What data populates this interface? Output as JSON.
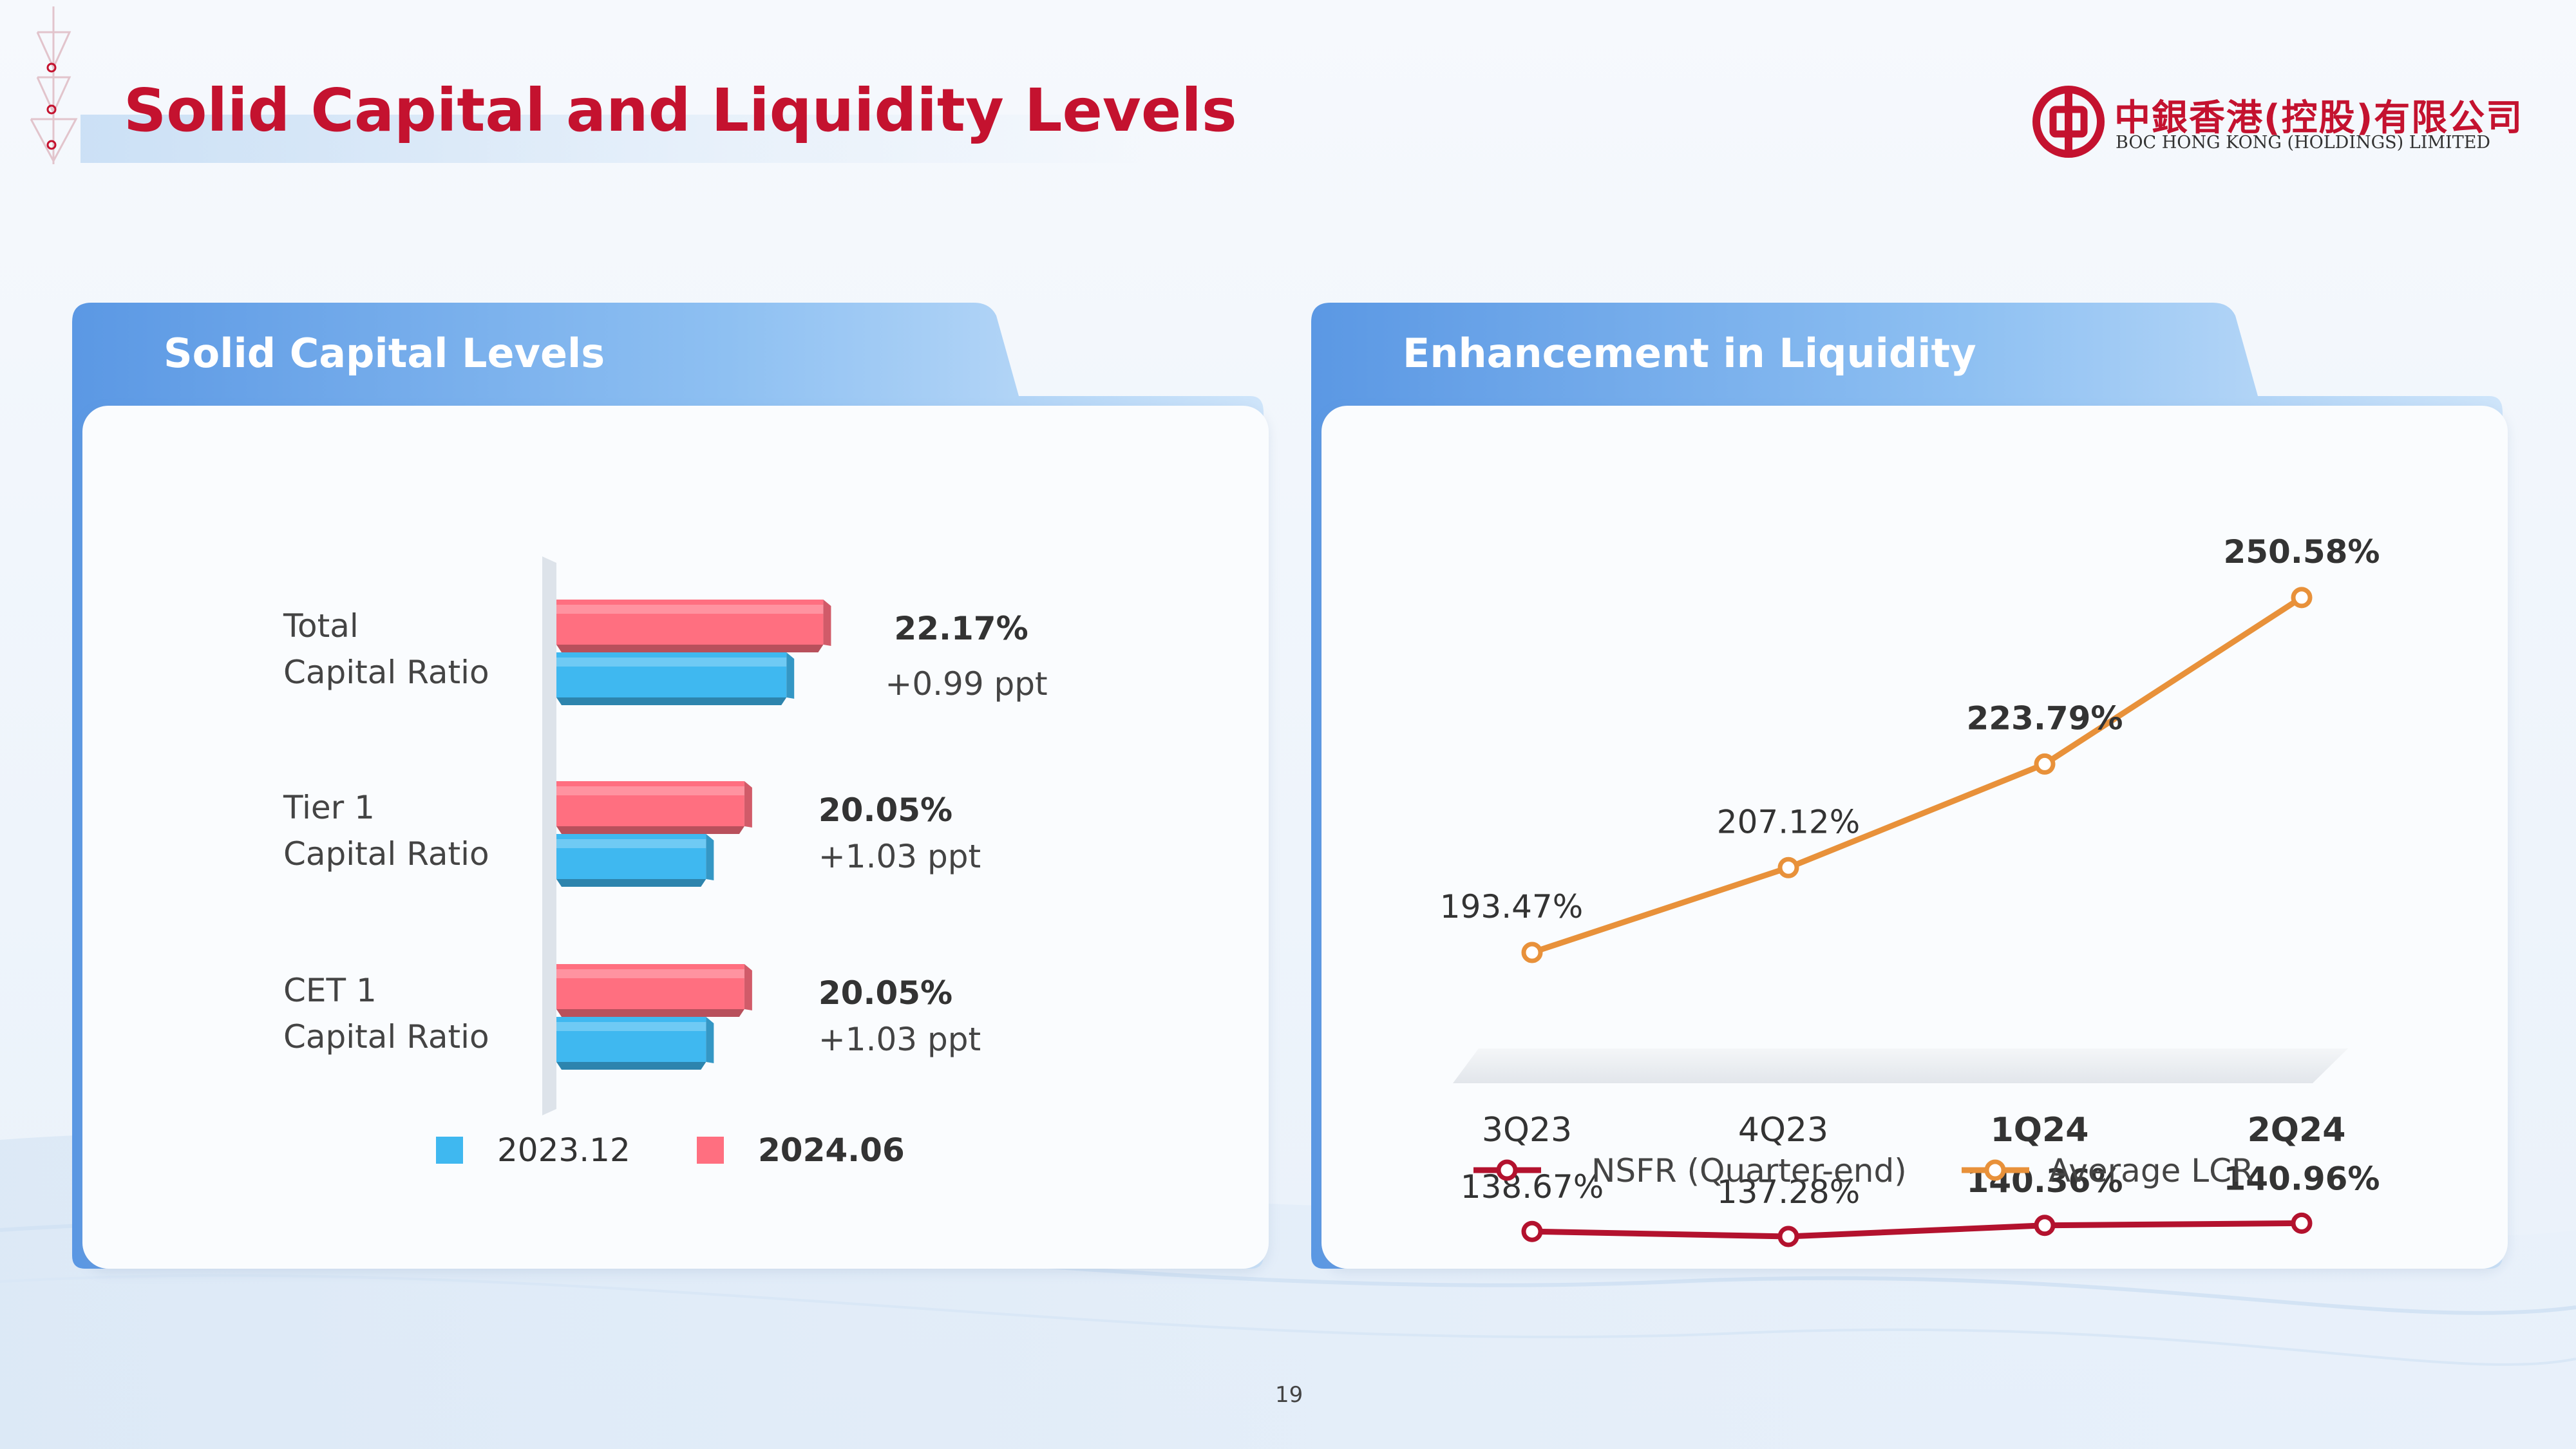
{
  "header": {
    "title": "Solid Capital and Liquidity Levels",
    "logo_cn": "中銀香港(控股)有限公司",
    "logo_en": "BOC HONG KONG (HOLDINGS) LIMITED"
  },
  "colors": {
    "accent_red": "#c4122f",
    "bar_2023": "#3fb8f0",
    "bar_2024": "#ff6f80",
    "nsfr_line": "#b3122e",
    "lcr_line": "#e8913a"
  },
  "panels": {
    "left_title": "Solid Capital Levels",
    "right_title": "Enhancement in Liquidity"
  },
  "page_number": "19",
  "chart_data": [
    {
      "type": "bar",
      "orientation": "horizontal",
      "categories": [
        {
          "line1": "Total",
          "line2": "Capital Ratio"
        },
        {
          "line1": "Tier 1",
          "line2": "Capital Ratio"
        },
        {
          "line1": "CET 1",
          "line2": "Capital Ratio"
        }
      ],
      "series": [
        {
          "name": "2023.12",
          "values": [
            21.18,
            19.02,
            19.02
          ]
        },
        {
          "name": "2024.06",
          "values": [
            22.17,
            20.05,
            20.05
          ]
        }
      ],
      "value_labels": [
        "22.17%",
        "20.05%",
        "20.05%"
      ],
      "change_labels": [
        "+0.99 ppt",
        "+1.03 ppt",
        "+1.03 ppt"
      ],
      "xlim": [
        15,
        24
      ],
      "legend_position": "bottom"
    },
    {
      "type": "line",
      "categories": [
        "3Q23",
        "4Q23",
        "1Q24",
        "2Q24"
      ],
      "series": [
        {
          "name": "NSFR (Quarter-end)",
          "values": [
            138.67,
            137.28,
            140.36,
            140.96
          ],
          "labels": [
            "138.67%",
            "137.28%",
            "140.36%",
            "140.96%"
          ]
        },
        {
          "name": "Average LCR",
          "values": [
            193.47,
            207.12,
            223.79,
            250.58
          ],
          "labels": [
            "193.47%",
            "207.12%",
            "223.79%",
            "250.58%"
          ]
        }
      ],
      "emphasized_categories": [
        "1Q24",
        "2Q24"
      ],
      "legend_position": "bottom"
    }
  ]
}
